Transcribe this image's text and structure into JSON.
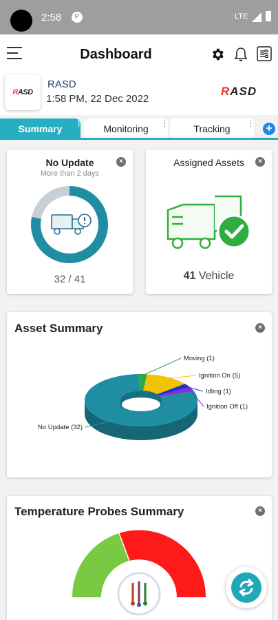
{
  "status_bar": {
    "time": "2:58",
    "notification_glyph": "P",
    "network": "LTE"
  },
  "header": {
    "title": "Dashboard",
    "icons": [
      "menu-icon",
      "gear-icon",
      "bell-icon",
      "filter-icon"
    ]
  },
  "company": {
    "logo_text": "RASD",
    "name": "RASD",
    "datetime": "1:58 PM, 22 Dec 2022",
    "brand": "RASD"
  },
  "tabs": [
    {
      "label": "Summary",
      "active": true
    },
    {
      "label": "Monitoring",
      "active": false
    },
    {
      "label": "Tracking",
      "active": false
    }
  ],
  "cards": {
    "no_update": {
      "title": "No Update",
      "subtitle": "More than 2 days",
      "count": "32 / 41",
      "value": 32,
      "total": 41
    },
    "assigned_assets": {
      "title": "Assigned Assets",
      "count": "41",
      "unit": "Vehicle"
    },
    "asset_summary": {
      "title": "Asset Summary"
    },
    "temperature": {
      "title": "Temperature Probes Summary"
    }
  },
  "chart_data": {
    "type": "pie",
    "categories": [
      "No Update",
      "Moving",
      "Ignition On",
      "Idling",
      "Ignition Off"
    ],
    "values": [
      32,
      1,
      5,
      1,
      1
    ],
    "labels": [
      "No Update (32)",
      "Moving (1)",
      "Ignition On (5)",
      "Idling (1)",
      "Ignition Off (1)"
    ],
    "colors": [
      "#1f8ea3",
      "#2ea64a",
      "#f2c300",
      "#2233cc",
      "#8a2be2"
    ],
    "title": "Asset Summary"
  },
  "colors": {
    "accent": "#27aec0",
    "danger": "#e53935",
    "success": "#2eae3f"
  }
}
